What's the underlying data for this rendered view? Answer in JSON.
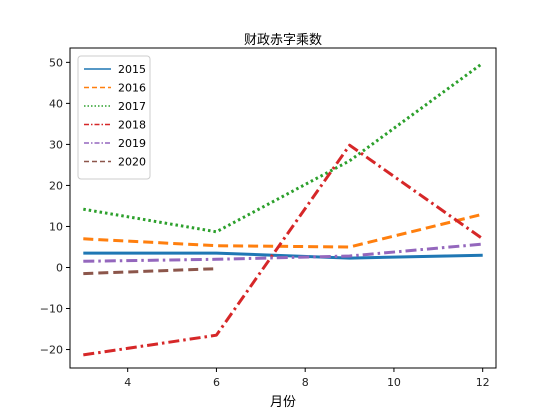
{
  "chart_data": {
    "type": "line",
    "title": "财政赤字乘数",
    "xlabel": "月份",
    "ylabel": "",
    "xlim": [
      2.7,
      12.3
    ],
    "ylim": [
      -24.5,
      53.5
    ],
    "xticks": [
      4,
      6,
      8,
      10,
      12
    ],
    "yticks": [
      -20,
      -10,
      0,
      10,
      20,
      30,
      40,
      50
    ],
    "legend_position": "upper-left",
    "grid": false,
    "series": [
      {
        "name": "2015",
        "color": "#1f77b4",
        "dash": "solid",
        "x": [
          3,
          6,
          9,
          12
        ],
        "y": [
          3.5,
          3.5,
          2.3,
          3.0
        ]
      },
      {
        "name": "2016",
        "color": "#ff7f0e",
        "dash": "dashed",
        "x": [
          3,
          6,
          9,
          12
        ],
        "y": [
          7.0,
          5.3,
          5.0,
          13.0
        ]
      },
      {
        "name": "2017",
        "color": "#2ca02c",
        "dash": "dotted",
        "x": [
          3,
          6,
          9,
          12
        ],
        "y": [
          14.2,
          8.7,
          26.0,
          49.8
        ]
      },
      {
        "name": "2018",
        "color": "#d62728",
        "dash": "dashdot",
        "x": [
          3,
          6,
          9,
          12
        ],
        "y": [
          -21.3,
          -16.5,
          29.8,
          7.0
        ]
      },
      {
        "name": "2019",
        "color": "#9467bd",
        "dash": "dashdot",
        "x": [
          3,
          6,
          9,
          12
        ],
        "y": [
          1.5,
          2.0,
          2.8,
          5.7
        ]
      },
      {
        "name": "2020",
        "color": "#8c564b",
        "dash": "dashed",
        "x": [
          3,
          6
        ],
        "y": [
          -1.5,
          -0.3
        ]
      }
    ]
  }
}
